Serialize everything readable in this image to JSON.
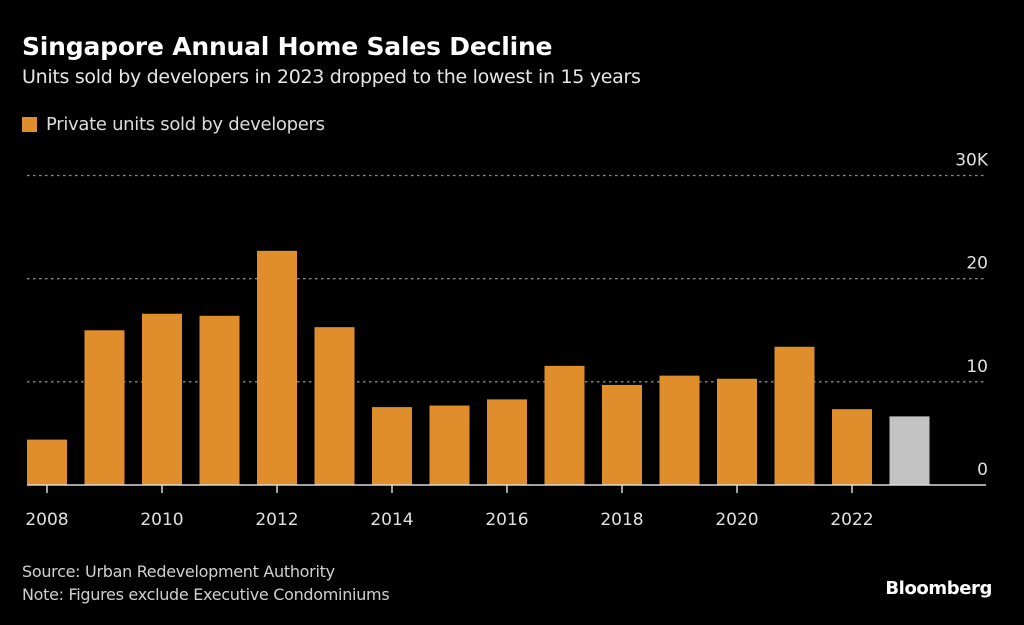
{
  "header": {
    "title": "Singapore Annual Home Sales Decline",
    "subtitle": "Units sold by developers in 2023 dropped to the lowest in 15 years"
  },
  "footer": {
    "source": "Source: Urban Redevelopment Authority",
    "note": "Note: Figures exclude Executive Condominiums",
    "brand": "Bloomberg"
  },
  "colors": {
    "bar": "#e08e2b",
    "highlight_bar": "#c3c3c3",
    "background": "#000000",
    "gridline": "#8a8a8a",
    "axis": "#d9d9d9"
  },
  "chart_data": {
    "type": "bar",
    "title": "Singapore Annual Home Sales Decline",
    "subtitle": "Units sold by developers in 2023 dropped to the lowest in 15 years",
    "xlabel": "",
    "ylabel": "",
    "legend": {
      "placement": "top-left",
      "entries": [
        {
          "label": "Private units sold by developers",
          "color": "#e08e2b"
        }
      ]
    },
    "categories": [
      "2008",
      "2009",
      "2010",
      "2011",
      "2012",
      "2013",
      "2014",
      "2015",
      "2016",
      "2017",
      "2018",
      "2019",
      "2020",
      "2021",
      "2022",
      "2023"
    ],
    "series": [
      {
        "name": "Private units sold by developers",
        "values": [
          4400,
          15000,
          16600,
          16400,
          22700,
          15300,
          7550,
          7700,
          8300,
          11550,
          9700,
          10600,
          10300,
          13400,
          7350,
          6650
        ]
      }
    ],
    "highlight_category": "2023",
    "ylim": [
      0,
      30000
    ],
    "yticks": [
      0,
      10000,
      20000,
      30000
    ],
    "ytick_labels": [
      "0",
      "10",
      "20",
      "30K"
    ],
    "xtick_labels": [
      "2008",
      "2010",
      "2012",
      "2014",
      "2016",
      "2018",
      "2020",
      "2022"
    ],
    "yaxis_position": "right",
    "grid": true
  }
}
